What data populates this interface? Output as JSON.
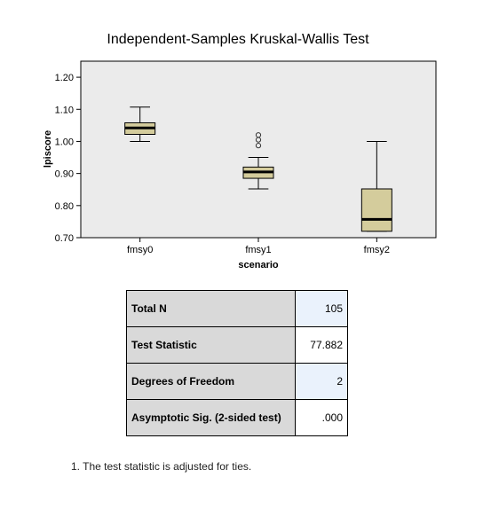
{
  "chart_data": {
    "type": "boxplot",
    "title": "Independent-Samples Kruskal-Wallis Test",
    "xlabel": "scenario",
    "ylabel": "lpiscore",
    "ylim": [
      0.7,
      1.25
    ],
    "yticks": [
      "0.70",
      "0.80",
      "0.90",
      "1.00",
      "1.10",
      "1.20"
    ],
    "yticks_values": [
      0.7,
      0.8,
      0.9,
      1.0,
      1.1,
      1.2
    ],
    "categories": [
      "fmsy0",
      "fmsy1",
      "fmsy2"
    ],
    "boxes": [
      {
        "category": "fmsy0",
        "min": 1.0,
        "q1": 1.022,
        "median": 1.042,
        "q3": 1.058,
        "max": 1.107,
        "outliers": []
      },
      {
        "category": "fmsy1",
        "min": 0.852,
        "q1": 0.885,
        "median": 0.905,
        "q3": 0.92,
        "max": 0.95,
        "outliers": [
          0.987,
          1.005,
          1.02
        ]
      },
      {
        "category": "fmsy2",
        "min": 0.72,
        "q1": 0.72,
        "median": 0.757,
        "q3": 0.852,
        "max": 1.0,
        "outliers": []
      }
    ],
    "grid": false,
    "colors": {
      "box": "#d4cc9c",
      "plot_bg": "#ebebeb",
      "median": "#000000"
    }
  },
  "stats_table": [
    {
      "label": "Total N",
      "value": "105"
    },
    {
      "label": "Test Statistic",
      "value": "77.882"
    },
    {
      "label": "Degrees of Freedom",
      "value": "2"
    },
    {
      "label": "Asymptotic Sig. (2-sided test)",
      "value": ".000"
    }
  ],
  "footnote": "1.  The test statistic is adjusted for ties."
}
